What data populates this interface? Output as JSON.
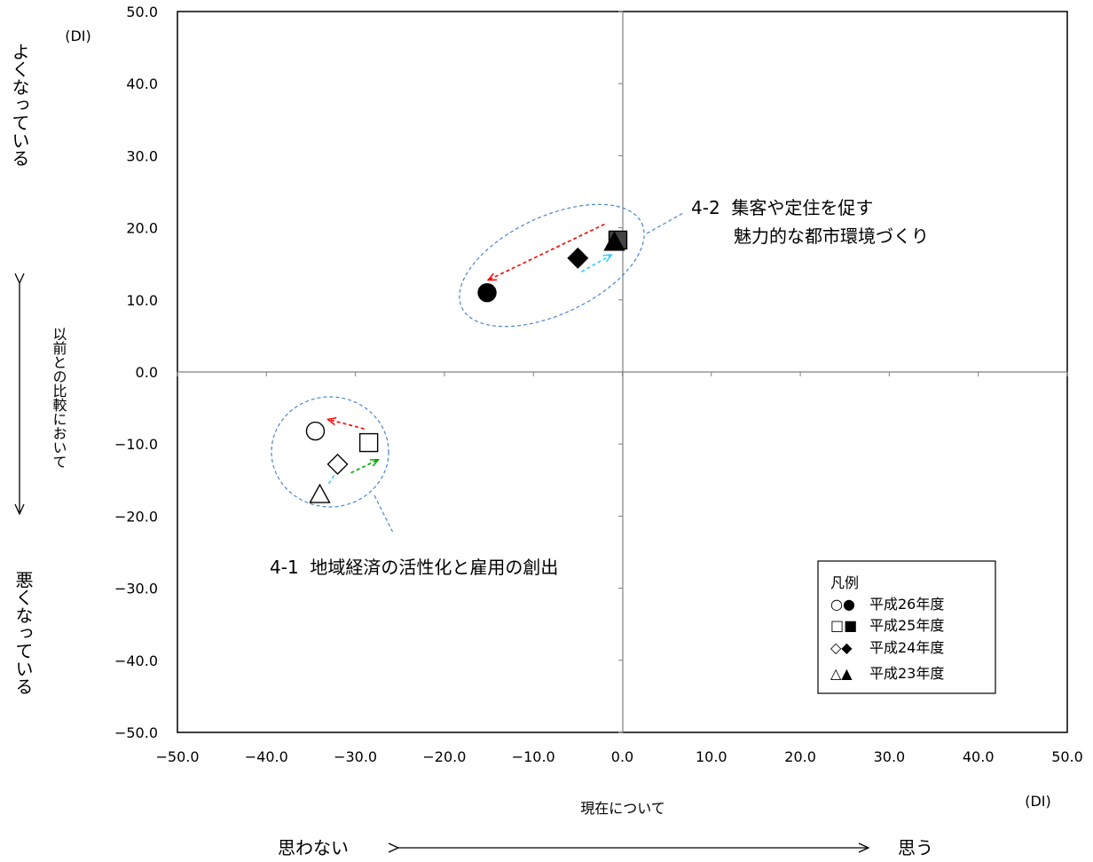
{
  "chart_data": {
    "type": "scatter",
    "xlim": [
      -50,
      50
    ],
    "ylim": [
      -50,
      50
    ],
    "x_ticks": [
      -50,
      -40,
      -30,
      -20,
      -10,
      0,
      10,
      20,
      30,
      40,
      50
    ],
    "y_ticks": [
      50,
      40,
      30,
      20,
      10,
      0,
      -10,
      -20,
      -30,
      -40,
      -50
    ],
    "x_tick_labels": [
      "−50.0",
      "−40.0",
      "−30.0",
      "−20.0",
      "−10.0",
      "0.0",
      "10.0",
      "20.0",
      "30.0",
      "40.0",
      "50.0"
    ],
    "y_tick_labels": [
      "50.0",
      "40.0",
      "30.0",
      "20.0",
      "10.0",
      "0.0",
      "−10.0",
      "−20.0",
      "−30.0",
      "−40.0",
      "−50.0"
    ],
    "grid": false,
    "x_unit": "(DI)",
    "y_unit": "(DI)",
    "xlabel": "現在について",
    "x_left_label": "思わない",
    "x_right_label": "思う",
    "y_top_label": "よくなっている",
    "y_mid_label": "以前との比較において",
    "y_bottom_label": "悪くなっている",
    "legend": {
      "title": "凡例",
      "position": "bottom-right",
      "entries": [
        {
          "symbols": "○●",
          "label": "平成26年度"
        },
        {
          "symbols": "□■",
          "label": "平成25年度"
        },
        {
          "symbols": "◇◆",
          "label": "平成24年度"
        },
        {
          "symbols": "△▲",
          "label": "平成23年度"
        }
      ]
    },
    "series": [
      {
        "group_label": "4-1  地域経済の活性化と雇用の創出",
        "filled": false,
        "points": [
          {
            "year": "平成26年度",
            "marker": "circle",
            "x": -34.5,
            "y": -8.2
          },
          {
            "year": "平成25年度",
            "marker": "square",
            "x": -28.5,
            "y": -9.8
          },
          {
            "year": "平成24年度",
            "marker": "diamond",
            "x": -32.0,
            "y": -12.8
          },
          {
            "year": "平成23年度",
            "marker": "triangle",
            "x": -34.0,
            "y": -17.0
          }
        ],
        "arrows": [
          {
            "from": [
              -33.0,
              -15.5
            ],
            "to": [
              -31.5,
              -12.7
            ],
            "color": "#33ccff"
          },
          {
            "from": [
              -30.5,
              -14.0
            ],
            "to": [
              -27.5,
              -12.2
            ],
            "color": "#00aa00"
          },
          {
            "from": [
              -29.0,
              -7.9
            ],
            "to": [
              -33.0,
              -6.6
            ],
            "color": "#ff0000"
          }
        ]
      },
      {
        "group_label_line1": "4-2  集客や定住を促す",
        "group_label_line2": "魅力的な都市環境づくり",
        "filled": true,
        "points": [
          {
            "year": "平成26年度",
            "marker": "circle",
            "x": -15.2,
            "y": 11.0
          },
          {
            "year": "平成25年度",
            "marker": "square",
            "x": -0.5,
            "y": 18.3
          },
          {
            "year": "平成24年度",
            "marker": "diamond",
            "x": -5.0,
            "y": 15.8
          },
          {
            "year": "平成23年度",
            "marker": "triangle",
            "x": -0.9,
            "y": 18.0
          }
        ],
        "arrows": [
          {
            "from": [
              -4.6,
              13.9
            ],
            "to": [
              -1.3,
              16.2
            ],
            "color": "#33ccff"
          },
          {
            "from": [
              -2.0,
              20.5
            ],
            "to": [
              -15.0,
              12.8
            ],
            "color": "#ff0000"
          }
        ]
      }
    ]
  }
}
